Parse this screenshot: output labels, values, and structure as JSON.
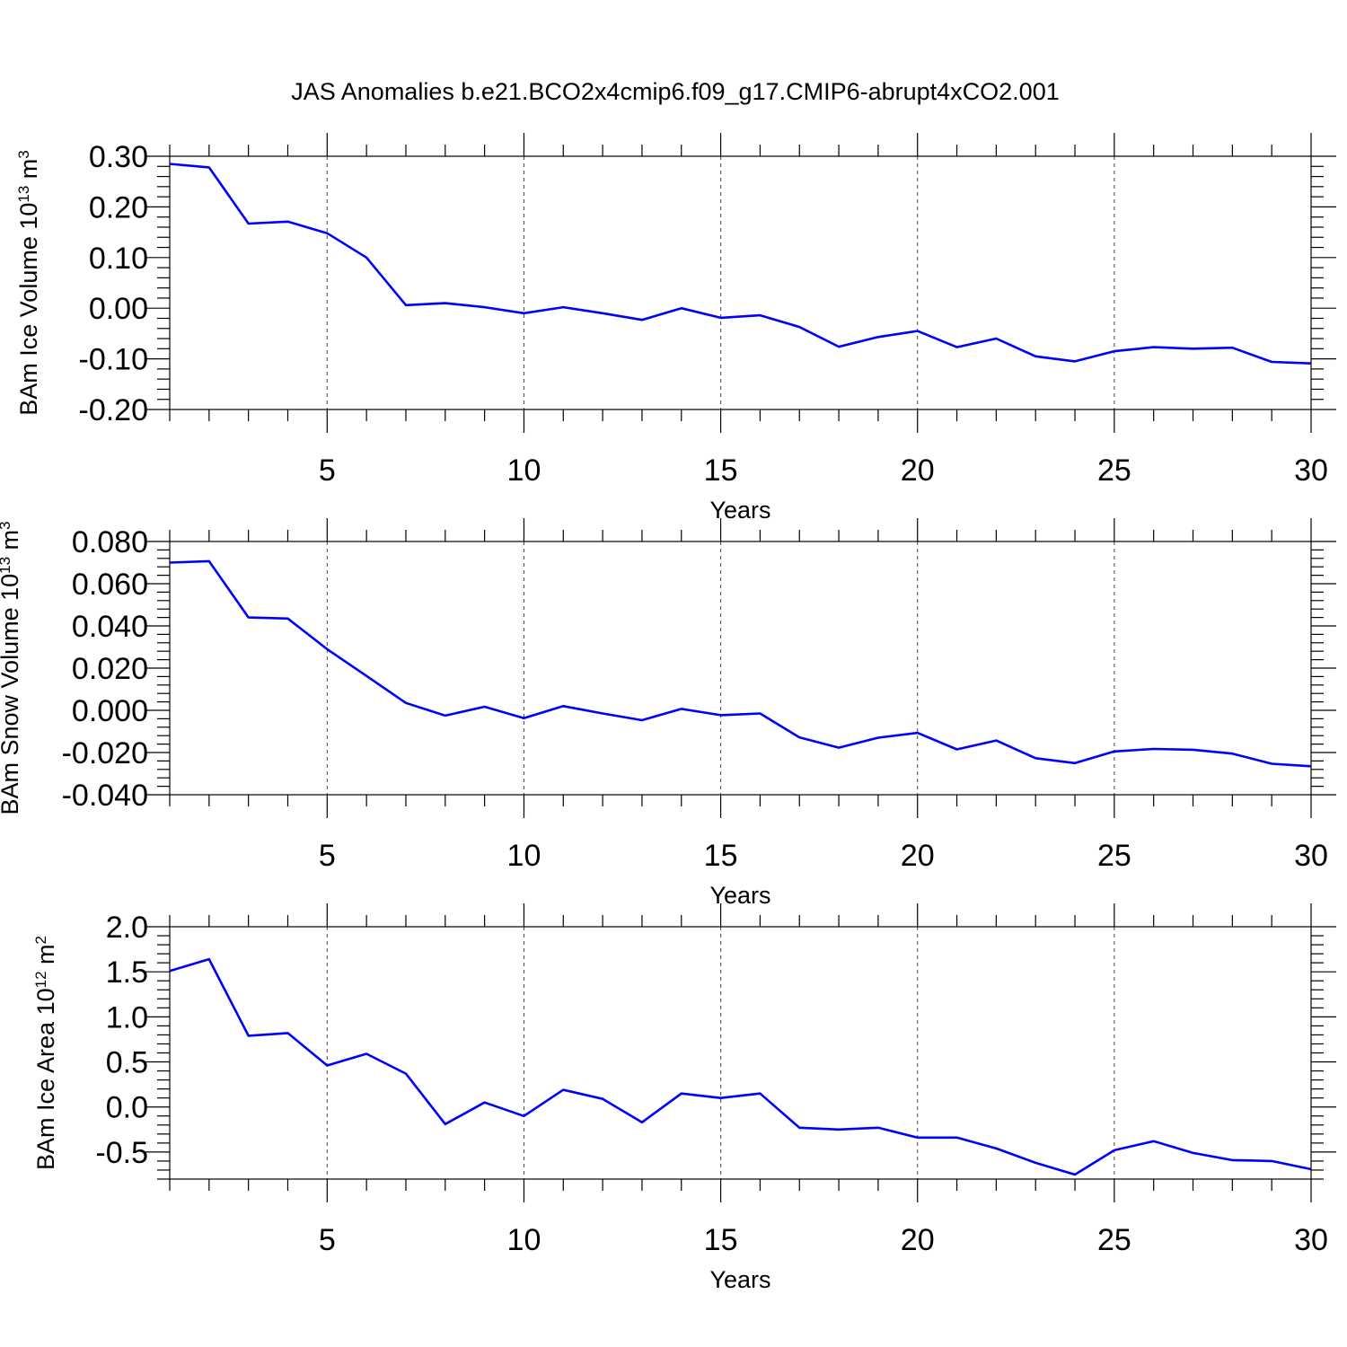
{
  "title": "JAS Anomalies b.e21.BCO2x4cmip6.f09_g17.CMIP6-abrupt4xCO2.001",
  "colors": {
    "line": "#0000ff"
  },
  "chart_data": [
    {
      "type": "line",
      "ylabel": {
        "text": "BAm Ice Volume 10",
        "exp1": "13",
        "unit": " m",
        "exp2": "3"
      },
      "xlabel": "Years",
      "xlim": [
        1,
        30
      ],
      "ylim": [
        -0.2,
        0.3
      ],
      "xticks": [
        5,
        10,
        15,
        20,
        25,
        30
      ],
      "xtick_labels": [
        "5",
        "10",
        "15",
        "20",
        "25",
        "30"
      ],
      "yticks": [
        -0.2,
        -0.1,
        0.0,
        0.1,
        0.2,
        0.3
      ],
      "ytick_labels": [
        "-0.20",
        "-0.10",
        "0.00",
        "0.10",
        "0.20",
        "0.30"
      ],
      "ystep": 0.1,
      "grid": "x-dashed",
      "x": [
        1,
        2,
        3,
        4,
        5,
        6,
        7,
        8,
        9,
        10,
        11,
        12,
        13,
        14,
        15,
        16,
        17,
        18,
        19,
        20,
        21,
        22,
        23,
        24,
        25,
        26,
        27,
        28,
        29,
        30
      ],
      "values": [
        0.285,
        0.278,
        0.167,
        0.171,
        0.148,
        0.1,
        0.006,
        0.01,
        0.002,
        -0.01,
        0.002,
        -0.01,
        -0.023,
        0.0,
        -0.019,
        -0.014,
        -0.037,
        -0.076,
        -0.057,
        -0.045,
        -0.077,
        -0.06,
        -0.095,
        -0.105,
        -0.085,
        -0.077,
        -0.08,
        -0.078,
        -0.106,
        -0.109
      ]
    },
    {
      "type": "line",
      "ylabel": {
        "text": "BAm Snow Volume 10",
        "exp1": "13",
        "unit": " m",
        "exp2": "3"
      },
      "xlabel": "Years",
      "xlim": [
        1,
        30
      ],
      "ylim": [
        -0.04,
        0.08
      ],
      "xticks": [
        5,
        10,
        15,
        20,
        25,
        30
      ],
      "xtick_labels": [
        "5",
        "10",
        "15",
        "20",
        "25",
        "30"
      ],
      "yticks": [
        -0.04,
        -0.02,
        0.0,
        0.02,
        0.04,
        0.06,
        0.08
      ],
      "ytick_labels": [
        "-0.040",
        "-0.020",
        "0.000",
        "0.020",
        "0.040",
        "0.060",
        "0.080"
      ],
      "ystep": 0.02,
      "grid": "x-dashed",
      "x": [
        1,
        2,
        3,
        4,
        5,
        6,
        7,
        8,
        9,
        10,
        11,
        12,
        13,
        14,
        15,
        16,
        17,
        18,
        19,
        20,
        21,
        22,
        23,
        24,
        25,
        26,
        27,
        28,
        29,
        30
      ],
      "values": [
        0.07,
        0.0707,
        0.044,
        0.0435,
        0.029,
        0.0163,
        0.0035,
        -0.0025,
        0.0017,
        -0.0037,
        0.002,
        -0.0015,
        -0.0047,
        0.0007,
        -0.0023,
        -0.0015,
        -0.0128,
        -0.0177,
        -0.013,
        -0.0107,
        -0.0185,
        -0.0143,
        -0.0227,
        -0.025,
        -0.0195,
        -0.0183,
        -0.0187,
        -0.0205,
        -0.0253,
        -0.0265
      ]
    },
    {
      "type": "line",
      "ylabel": {
        "text": "BAm Ice Area 10",
        "exp1": "12",
        "unit": " m",
        "exp2": "2"
      },
      "xlabel": "Years",
      "xlim": [
        1,
        30
      ],
      "ylim": [
        -0.8,
        2.0
      ],
      "xticks": [
        5,
        10,
        15,
        20,
        25,
        30
      ],
      "xtick_labels": [
        "5",
        "10",
        "15",
        "20",
        "25",
        "30"
      ],
      "yticks": [
        -0.5,
        0.0,
        0.5,
        1.0,
        1.5,
        2.0
      ],
      "ytick_labels": [
        "-0.5",
        "0.0",
        "0.5",
        "1.0",
        "1.5",
        "2.0"
      ],
      "ystep": 0.5,
      "grid": "x-dashed",
      "x": [
        1,
        2,
        3,
        4,
        5,
        6,
        7,
        8,
        9,
        10,
        11,
        12,
        13,
        14,
        15,
        16,
        17,
        18,
        19,
        20,
        21,
        22,
        23,
        24,
        25,
        26,
        27,
        28,
        29,
        30
      ],
      "values": [
        1.51,
        1.64,
        0.79,
        0.82,
        0.46,
        0.59,
        0.37,
        -0.19,
        0.05,
        -0.1,
        0.19,
        0.09,
        -0.17,
        0.15,
        0.1,
        0.15,
        -0.23,
        -0.25,
        -0.23,
        -0.34,
        -0.34,
        -0.46,
        -0.62,
        -0.75,
        -0.48,
        -0.38,
        -0.51,
        -0.59,
        -0.6,
        -0.69
      ]
    }
  ]
}
